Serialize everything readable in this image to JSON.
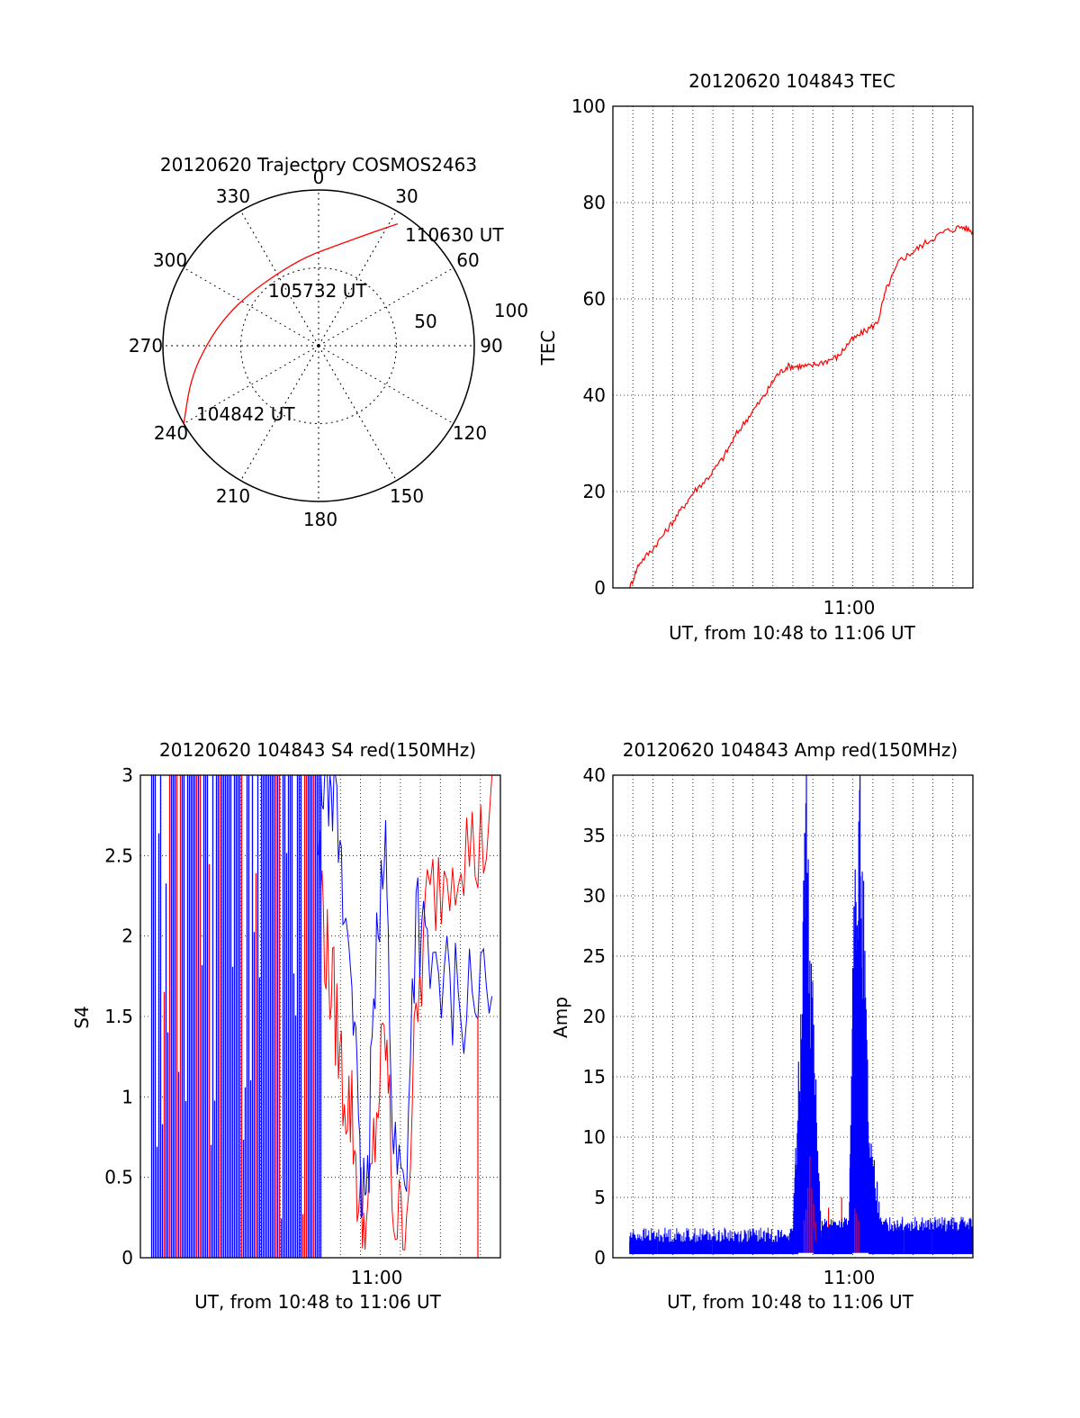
{
  "chart_data": [
    {
      "type": "polar",
      "title": "20120620 Trajectory COSMOS2463",
      "azimuth_labels": [
        "0",
        "30",
        "60",
        "90",
        "120",
        "150",
        "180",
        "210",
        "240",
        "270",
        "300",
        "330"
      ],
      "radial_labels": [
        "50",
        "100"
      ],
      "trajectory": {
        "color": "#ff0000",
        "points": [
          {
            "az": 240,
            "el": 0
          },
          {
            "az": 256,
            "el": 14
          },
          {
            "az": 272,
            "el": 26
          },
          {
            "az": 288,
            "el": 34
          },
          {
            "az": 307,
            "el": 40
          },
          {
            "az": 330,
            "el": 42
          },
          {
            "az": 352,
            "el": 38
          },
          {
            "az": 12,
            "el": 30
          },
          {
            "az": 25,
            "el": 18
          },
          {
            "az": 33,
            "el": 6
          }
        ]
      },
      "annotations": [
        "110630 UT",
        "105732 UT",
        "104842 UT"
      ]
    },
    {
      "type": "line",
      "title": "20120620 104843 TEC",
      "xlabel": "UT, from 10:48 to 11:06 UT",
      "ylabel": "TEC",
      "xlim": [
        10.79,
        11.11
      ],
      "ylim": [
        0,
        100
      ],
      "yticks": [
        "0",
        "20",
        "40",
        "60",
        "80",
        "100"
      ],
      "xtick_labels": [
        "11:00"
      ],
      "grid": true,
      "series": [
        {
          "color": "#ff0000",
          "x": [
            10.805,
            10.813,
            10.825,
            10.838,
            10.85,
            10.862,
            10.875,
            10.888,
            10.9,
            10.912,
            10.925,
            10.935,
            10.945,
            10.955,
            10.965,
            10.978,
            10.99,
            11.0,
            11.012,
            11.025,
            11.033,
            11.045,
            11.058,
            11.07,
            11.085,
            11.1,
            11.11
          ],
          "values": [
            0,
            5,
            8,
            12,
            16,
            20,
            23,
            27,
            32,
            36,
            40,
            44,
            46,
            46,
            46,
            47,
            48,
            51,
            53,
            55,
            62,
            68,
            70,
            72,
            74,
            75,
            74
          ]
        }
      ]
    },
    {
      "type": "line",
      "title": "20120620 104843 S4 red(150MHz)",
      "xlabel": "UT, from 10:48 to 11:06 UT",
      "ylabel": "S4",
      "xlim": [
        10.79,
        11.11
      ],
      "ylim": [
        0,
        3
      ],
      "yticks": [
        "0",
        "0.5",
        "1",
        "1.5",
        "2",
        "2.5",
        "3"
      ],
      "xtick_labels": [
        "11:00"
      ],
      "grid": true,
      "series": [
        {
          "color": "#ff0000",
          "x": [
            10.948,
            10.955,
            10.962,
            10.97,
            10.978,
            10.985,
            10.992,
            11.0,
            11.008,
            11.015,
            11.025,
            11.035,
            11.045,
            11.06,
            11.075,
            11.09,
            11.105
          ],
          "values": [
            2.6,
            1.9,
            1.6,
            1.1,
            0.9,
            0.3,
            0.15,
            0.9,
            1.4,
            0.3,
            0.12,
            1.4,
            2.2,
            2.4,
            2.6,
            2.5,
            2.8
          ]
        },
        {
          "color": "#0000ff",
          "x": [
            10.948,
            10.955,
            10.962,
            10.97,
            10.978,
            10.985,
            10.992,
            11.0,
            11.008,
            11.015,
            11.025,
            11.035,
            11.045,
            11.06,
            11.075,
            11.09,
            11.105
          ],
          "values": [
            3.0,
            3.0,
            3.0,
            2.2,
            1.9,
            0.45,
            0.35,
            2.2,
            2.5,
            0.7,
            0.4,
            2.2,
            1.8,
            1.7,
            1.6,
            1.7,
            1.5
          ]
        }
      ]
    },
    {
      "type": "line",
      "title": "20120620 104843 Amp red(150MHz)",
      "xlabel": "UT, from 10:48 to 11:06 UT",
      "ylabel": "Amp",
      "xlim": [
        10.79,
        11.11
      ],
      "ylim": [
        0,
        40
      ],
      "yticks": [
        "0",
        "5",
        "10",
        "15",
        "20",
        "25",
        "30",
        "35",
        "40"
      ],
      "xtick_labels": [
        "11:00"
      ],
      "grid": true,
      "series": [
        {
          "color": "#0000ff",
          "x": [
            10.805,
            10.83,
            10.86,
            10.89,
            10.92,
            10.95,
            10.955,
            10.962,
            10.968,
            10.975,
            10.99,
            11.0,
            11.005,
            11.01,
            11.018,
            11.03,
            11.06,
            11.09,
            11.11
          ],
          "values": [
            1.5,
            1.6,
            1.5,
            1.7,
            1.8,
            2.2,
            15,
            38,
            20,
            2.5,
            2.6,
            3,
            33,
            39,
            10,
            3,
            3,
            2.8,
            2.7
          ]
        },
        {
          "color": "#ff0000",
          "x": [
            10.96,
            10.965,
            10.97,
            11.005,
            11.01
          ],
          "values": [
            3,
            8,
            4,
            5,
            3
          ]
        }
      ]
    }
  ]
}
